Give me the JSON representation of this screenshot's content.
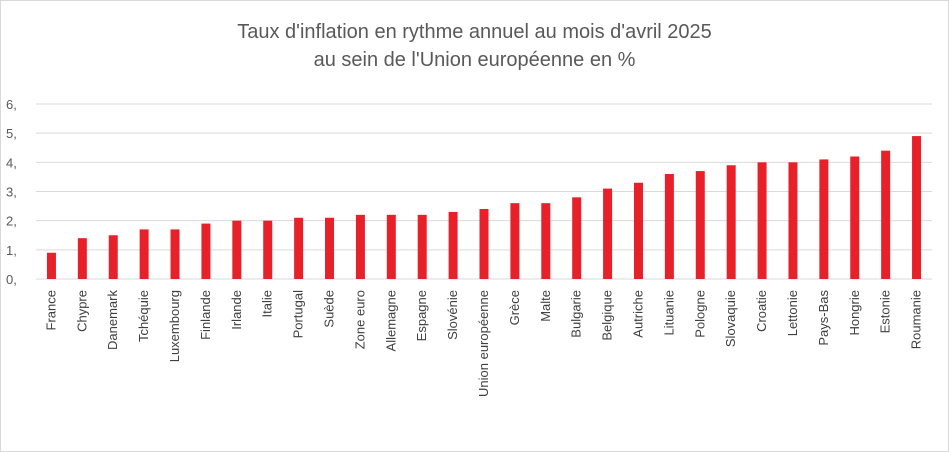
{
  "chart_data": {
    "type": "bar",
    "title_lines": [
      "Taux d'inflation en rythme annuel au mois d'avril 2025",
      "au sein de l'Union européenne en %"
    ],
    "categories": [
      "France",
      "Chypre",
      "Danemark",
      "Tchéquie",
      "Luxembourg",
      "Finlande",
      "Irlande",
      "Italie",
      "Portugal",
      "Suède",
      "Zone euro",
      "Allemagne",
      "Espagne",
      "Slovénie",
      "Union européenne",
      "Grèce",
      "Malte",
      "Bulgarie",
      "Belgique",
      "Autriche",
      "Lituanie",
      "Pologne",
      "Slovaquie",
      "Croatie",
      "Lettonie",
      "Pays-Bas",
      "Hongrie",
      "Estonie",
      "Roumanie"
    ],
    "values": [
      0.9,
      1.4,
      1.5,
      1.7,
      1.7,
      1.9,
      2.0,
      2.0,
      2.1,
      2.1,
      2.2,
      2.2,
      2.2,
      2.3,
      2.4,
      2.6,
      2.6,
      2.8,
      3.1,
      3.3,
      3.6,
      3.7,
      3.9,
      4.0,
      4.0,
      4.1,
      4.2,
      4.4,
      4.9
    ],
    "y_tick_labels": [
      "0,",
      "1,",
      "2,",
      "3,",
      "4,",
      "5,",
      "6,"
    ],
    "ylim": [
      0,
      6
    ],
    "grid": true,
    "legend": "none",
    "bar_color": "#e8202a",
    "grid_color": "#d9d9d9"
  }
}
